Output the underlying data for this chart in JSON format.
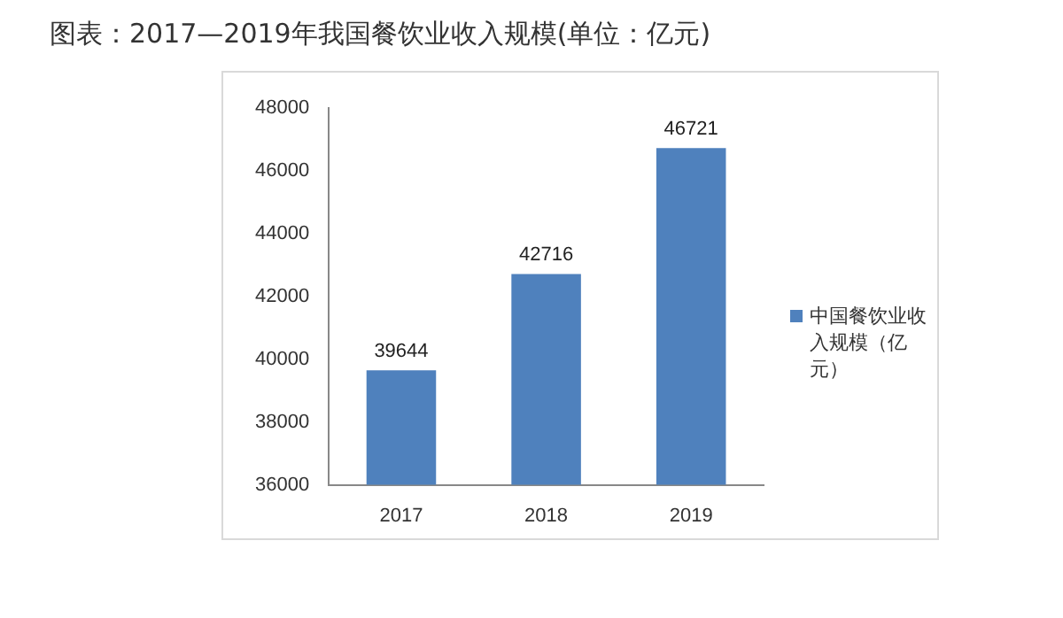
{
  "chart_data": {
    "type": "bar",
    "title": "图表：2017—2019年我国餐饮业收入规模(单位：亿元)",
    "categories": [
      "2017",
      "2018",
      "2019"
    ],
    "series": [
      {
        "name": "中国餐饮业收入规模（亿元）",
        "color": "#4f81bd",
        "values": [
          39644,
          42716,
          46721
        ]
      }
    ],
    "ylim": [
      36000,
      48000
    ],
    "yticks": [
      36000,
      38000,
      40000,
      42000,
      44000,
      46000,
      48000
    ],
    "grid": false,
    "legend": "right",
    "data_labels": true
  }
}
